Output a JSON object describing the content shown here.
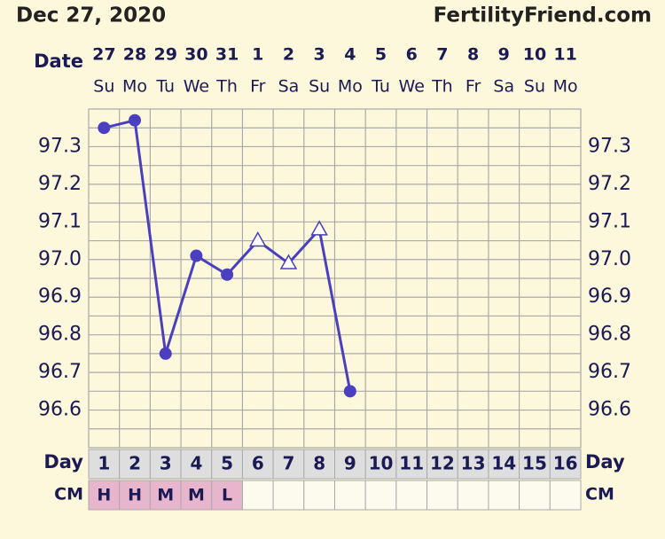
{
  "header": {
    "title": "Dec 27, 2020",
    "site": "FertilityFriend.com"
  },
  "chart_data": {
    "type": "line",
    "date_label": "Date",
    "day_label": "Day",
    "cm_label": "CM",
    "categories": [
      1,
      2,
      3,
      4,
      5,
      6,
      7,
      8,
      9,
      10,
      11,
      12,
      13,
      14,
      15,
      16
    ],
    "dates": [
      27,
      28,
      29,
      30,
      31,
      1,
      2,
      3,
      4,
      5,
      6,
      7,
      8,
      9,
      10,
      11
    ],
    "weekdays": [
      "Su",
      "Mo",
      "Tu",
      "We",
      "Th",
      "Fr",
      "Sa",
      "Su",
      "Mo",
      "Tu",
      "We",
      "Th",
      "Fr",
      "Sa",
      "Su",
      "Mo"
    ],
    "values": [
      97.35,
      97.37,
      96.75,
      97.01,
      96.96,
      97.05,
      96.99,
      97.08,
      96.65,
      null,
      null,
      null,
      null,
      null,
      null,
      null
    ],
    "markers": [
      "circle",
      "circle",
      "circle",
      "circle",
      "circle",
      "triangle",
      "triangle",
      "triangle",
      "circle",
      null,
      null,
      null,
      null,
      null,
      null,
      null
    ],
    "color": "#4a3fbf",
    "cm": [
      "H",
      "H",
      "M",
      "M",
      "L",
      null,
      null,
      null,
      null,
      null,
      null,
      null,
      null,
      null,
      null,
      null
    ],
    "cm_color": "#e8b6cc",
    "ylim": [
      96.5,
      97.4
    ],
    "yticks": [
      96.6,
      96.7,
      96.8,
      96.9,
      {
        "value": 97,
        "label": "97.0"
      },
      97.1,
      97.2,
      97.3
    ],
    "grid": true
  }
}
